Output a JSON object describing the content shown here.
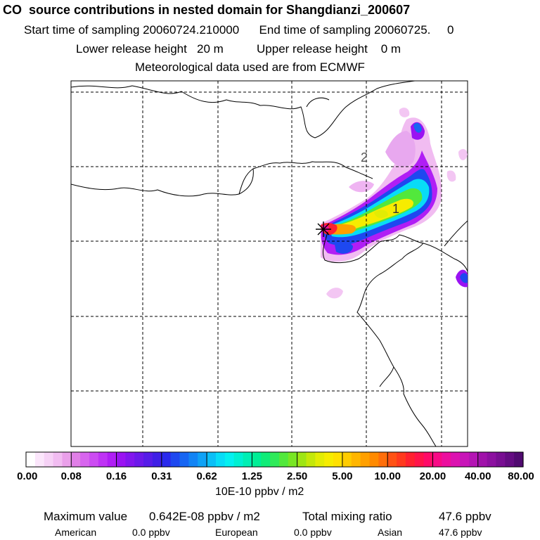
{
  "header": {
    "title": "CO  source contributions in nested domain for Shangdianzi_200607",
    "line1": "Start time of sampling 20060724.210000      End time of sampling 20060725.     0",
    "line2": "Lower release height   20 m          Upper release height    0 m",
    "line3": "Meteorological data used are from ECMWF"
  },
  "chart_data": {
    "type": "heatmap",
    "title": "CO  source contributions in nested domain for Shangdianzi_200607",
    "colorbar": {
      "unit": "10E-10 ppbv / m2",
      "tick_labels": [
        "0.00",
        "0.08",
        "0.16",
        "0.31",
        "0.62",
        "1.25",
        "2.50",
        "5.00",
        "10.00",
        "20.00",
        "40.00",
        "80.00"
      ],
      "colors": [
        "#ffffff",
        "#fbe6fb",
        "#f6d2f6",
        "#f1bcf1",
        "#eaa0ea",
        "#e07fe7",
        "#d765ee",
        "#cc4cf2",
        "#bf33f5",
        "#b01ef5",
        "#9a13f2",
        "#8216ee",
        "#6c19ea",
        "#561ce8",
        "#3f1fe6",
        "#2a2aec",
        "#1e48f0",
        "#1766f3",
        "#1284f5",
        "#0fa2f6",
        "#0bbff7",
        "#08dcf7",
        "#04f0f0",
        "#00f0d2",
        "#00efb4",
        "#00ee96",
        "#10ec78",
        "#30ea5a",
        "#52e83c",
        "#78e624",
        "#9ee614",
        "#c4e80a",
        "#e2ec04",
        "#f6ec00",
        "#ffe000",
        "#ffcc00",
        "#ffb600",
        "#ffa000",
        "#ff8a00",
        "#ff6e0a",
        "#ff5214",
        "#ff3a1e",
        "#ff2230",
        "#ff144a",
        "#ff0a68",
        "#f80a86",
        "#ec0e9e",
        "#dc12b0",
        "#c814b8",
        "#b414b4",
        "#a012aa",
        "#8c10a0",
        "#780e92",
        "#640c82",
        "#500a70"
      ]
    },
    "release_site": "Shangdianzi",
    "contour_labels": [
      "1",
      "2"
    ],
    "grid": true
  },
  "stats": {
    "max_label": "Maximum value",
    "max_value": "0.642E-08 ppbv / m2",
    "total_label": "Total mixing ratio",
    "total_value": "47.6 ppbv",
    "regions": [
      {
        "name": "American",
        "value": "0.0 ppbv"
      },
      {
        "name": "European",
        "value": "0.0 ppbv"
      },
      {
        "name": "Asian",
        "value": "47.6 ppbv"
      }
    ]
  }
}
